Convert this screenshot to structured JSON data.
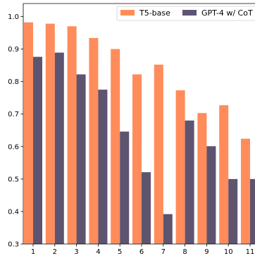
{
  "chart_data": {
    "type": "bar",
    "title": "",
    "xlabel": "",
    "ylabel": "",
    "categories": [
      "1",
      "2",
      "3",
      "4",
      "5",
      "6",
      "7",
      "8",
      "9",
      "10",
      "11"
    ],
    "series": [
      {
        "name": "T5-base",
        "color": "#FF8C5A",
        "values": [
          0.982,
          0.978,
          0.97,
          0.934,
          0.9,
          0.822,
          0.852,
          0.773,
          0.703,
          0.727,
          0.624
        ]
      },
      {
        "name": "GPT-4 w/ CoT",
        "color": "#5E5470",
        "values": [
          0.876,
          0.889,
          0.822,
          0.775,
          0.646,
          0.521,
          0.392,
          0.68,
          0.601,
          0.5,
          0.5
        ]
      }
    ],
    "ylim": [
      0.3,
      1.04
    ],
    "yticks": [
      "0.3",
      "0.4",
      "0.5",
      "0.6",
      "0.7",
      "0.8",
      "0.9",
      "1.0"
    ],
    "grid": false,
    "legend_position": "top-right"
  }
}
